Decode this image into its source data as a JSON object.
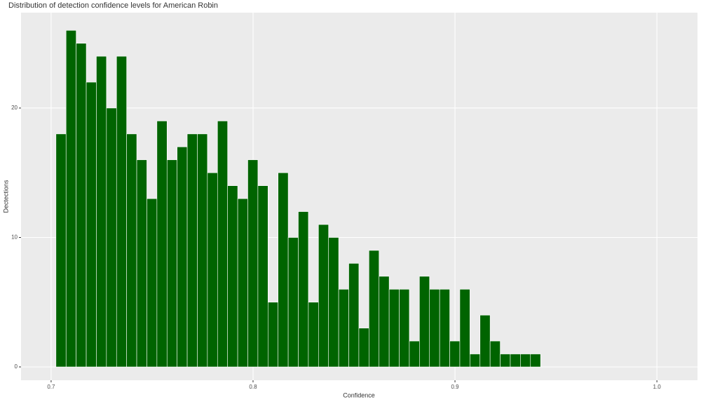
{
  "chart_data": {
    "type": "histogram",
    "title": "Distribution of detection confidence levels for American Robin",
    "x_label": "Confidence",
    "y_label": "Dectections",
    "bins": [
      0.7024,
      0.7074,
      0.7124,
      0.7174,
      0.7224,
      0.7274,
      0.7324,
      0.7374,
      0.7424,
      0.7474,
      0.7524,
      0.7574,
      0.7624,
      0.7674,
      0.7724,
      0.7774,
      0.7824,
      0.7874,
      0.7924,
      0.7974,
      0.8024,
      0.8074,
      0.8124,
      0.8174,
      0.8224,
      0.8274,
      0.8324,
      0.8374,
      0.8424,
      0.8474,
      0.8524,
      0.8574,
      0.8624,
      0.8674,
      0.8724,
      0.8774,
      0.8824,
      0.8874,
      0.8924,
      0.8974,
      0.9024,
      0.9074,
      0.9124,
      0.9174,
      0.9224,
      0.9274,
      0.9324,
      0.9374,
      0.9424
    ],
    "values": [
      18,
      26,
      25,
      22,
      24,
      20,
      24,
      18,
      16,
      13,
      19,
      16,
      17,
      18,
      18,
      15,
      19,
      14,
      13,
      16,
      14,
      5,
      15,
      10,
      12,
      5,
      11,
      10,
      6,
      8,
      3,
      9,
      7,
      6,
      6,
      2,
      7,
      6,
      6,
      2,
      6,
      1,
      4,
      2,
      1,
      1,
      1,
      1
    ],
    "color": "#006400",
    "xlim": [
      0.6851,
      1.0201
    ],
    "ylim": [
      -1.03,
      27.37
    ],
    "xticks": [
      0.7,
      0.8,
      0.9,
      {
        "value": 1,
        "label": "1.0"
      }
    ],
    "yticks": [
      0,
      10,
      20
    ],
    "grid": true
  }
}
